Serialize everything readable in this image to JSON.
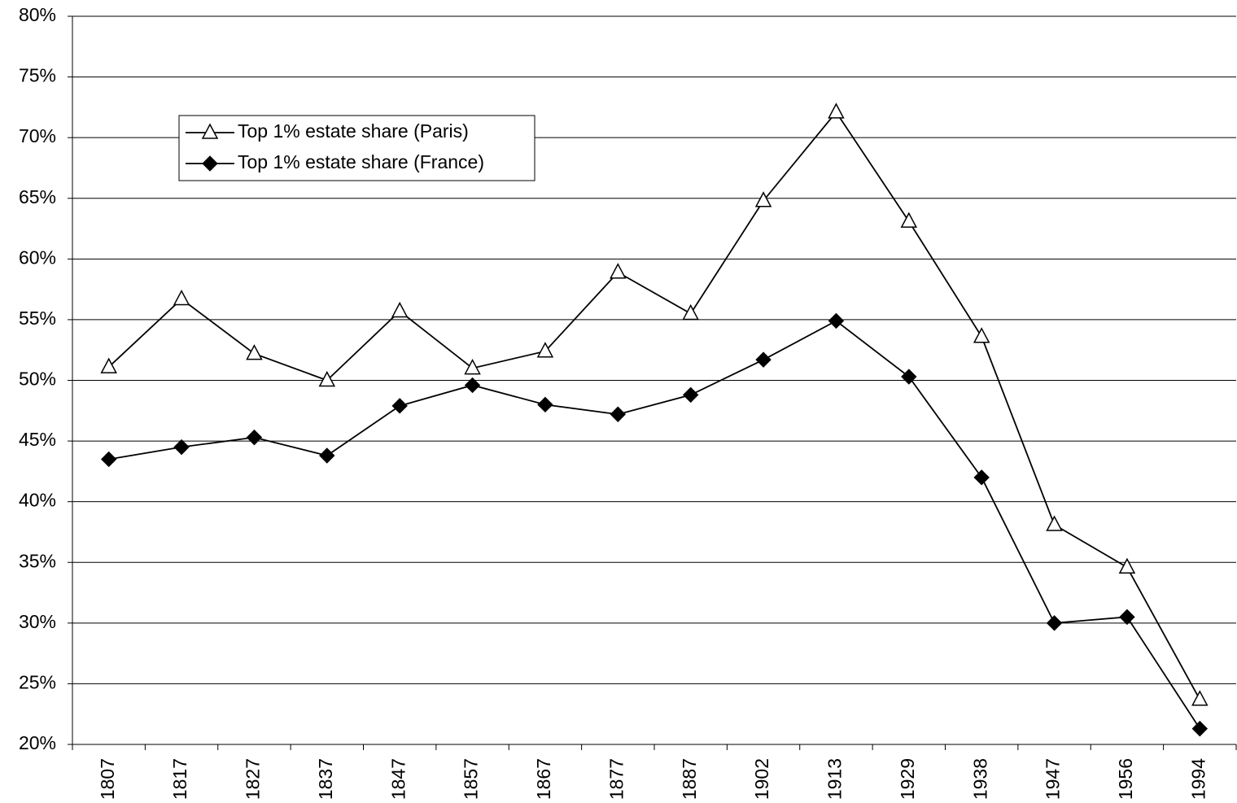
{
  "chart_data": {
    "type": "line",
    "categories": [
      "1807",
      "1817",
      "1827",
      "1837",
      "1847",
      "1857",
      "1867",
      "1877",
      "1887",
      "1902",
      "1913",
      "1929",
      "1938",
      "1947",
      "1956",
      "1994"
    ],
    "series": [
      {
        "name": "Top 1% estate share (Paris)",
        "color": "#000000",
        "marker": "triangle",
        "values": [
          51.1,
          56.7,
          52.2,
          50.0,
          55.7,
          51.0,
          52.4,
          58.9,
          55.5,
          64.8,
          72.1,
          63.1,
          53.6,
          38.1,
          34.6,
          23.7
        ]
      },
      {
        "name": "Top 1% estate share (France)",
        "color": "#000000",
        "marker": "diamond",
        "values": [
          43.5,
          44.5,
          45.3,
          43.8,
          47.9,
          49.6,
          48.0,
          47.2,
          48.8,
          51.7,
          54.9,
          50.3,
          42.0,
          30.0,
          30.5,
          21.3
        ]
      }
    ],
    "ylim": [
      20,
      80
    ],
    "yticks": [
      {
        "value": 20,
        "label": "20%"
      },
      {
        "value": 25,
        "label": "25%"
      },
      {
        "value": 30,
        "label": "30%"
      },
      {
        "value": 35,
        "label": "35%"
      },
      {
        "value": 40,
        "label": "40%"
      },
      {
        "value": 45,
        "label": "45%"
      },
      {
        "value": 50,
        "label": "50%"
      },
      {
        "value": 55,
        "label": "55%"
      },
      {
        "value": 60,
        "label": "60%"
      },
      {
        "value": 65,
        "label": "65%"
      },
      {
        "value": 70,
        "label": "70%"
      },
      {
        "value": 75,
        "label": "75%"
      },
      {
        "value": 80,
        "label": "80%"
      }
    ],
    "grid": true,
    "legend": "upper left"
  }
}
